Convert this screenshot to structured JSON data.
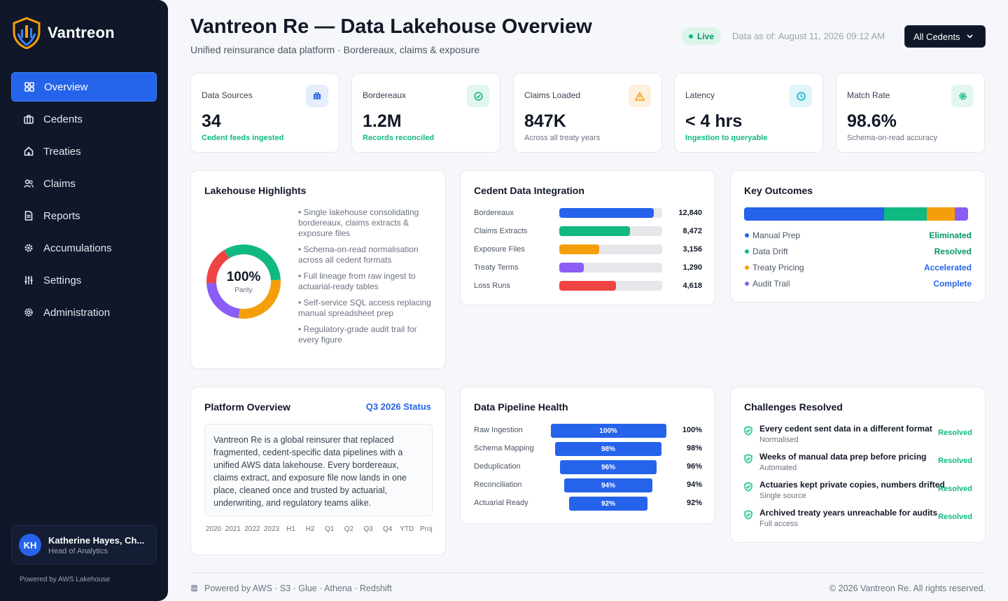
{
  "brand": {
    "name": "Vantreon"
  },
  "nav": {
    "items": [
      {
        "label": "Overview",
        "icon": "grid-icon",
        "active": true
      },
      {
        "label": "Cedents",
        "icon": "briefcase-icon"
      },
      {
        "label": "Treaties",
        "icon": "home-icon"
      },
      {
        "label": "Claims",
        "icon": "users-icon"
      },
      {
        "label": "Reports",
        "icon": "document-icon"
      },
      {
        "label": "Accumulations",
        "icon": "gear-icon"
      },
      {
        "label": "Settings",
        "icon": "sliders-icon"
      },
      {
        "label": "Administration",
        "icon": "cog-icon"
      }
    ]
  },
  "user": {
    "initials": "KH",
    "name": "Katherine Hayes, Ch...",
    "role": "Head of Analytics"
  },
  "sidebar_footer": "Powered by AWS Lakehouse",
  "header": {
    "title": "Vantreon Re — Data Lakehouse Overview",
    "subtitle": "Unified reinsurance data platform · Bordereaux, claims & exposure",
    "live_label": "Live",
    "data_as_of": "Data as of: August 11, 2026 09:12 AM",
    "cedent_filter": "All Cedents"
  },
  "kpis": [
    {
      "label": "Data Sources",
      "value": "34",
      "sub": "Cedent feeds ingested",
      "sub_color": "#10b981",
      "icon": "briefcase-icon",
      "icon_color": "#2563eb",
      "icon_bg": "#e6edfb"
    },
    {
      "label": "Bordereaux",
      "value": "1.2M",
      "sub": "Records reconciled",
      "sub_color": "#10b981",
      "icon": "check-circle-icon",
      "icon_color": "#10b981",
      "icon_bg": "#e3f6ee"
    },
    {
      "label": "Claims Loaded",
      "value": "847K",
      "sub": "Across all treaty years",
      "sub_color": "#6b7280",
      "icon": "warning-icon",
      "icon_color": "#f59e0b",
      "icon_bg": "#fdf1de"
    },
    {
      "label": "Latency",
      "value": "< 4 hrs",
      "sub": "Ingestion to queryable",
      "sub_color": "#10b981",
      "icon": "clock-icon",
      "icon_color": "#06b6d4",
      "icon_bg": "#e0f5f9"
    },
    {
      "label": "Match Rate",
      "value": "98.6%",
      "sub": "Schema-on-read accuracy",
      "sub_color": "#6b7280",
      "icon": "gear-icon",
      "icon_color": "#10b981",
      "icon_bg": "#e3f6ee"
    }
  ],
  "highlights": {
    "title": "Lakehouse Highlights",
    "donut_value": "100%",
    "donut_label": "Parity",
    "donut_segments": [
      {
        "color": "#10b981",
        "fraction": 0.33
      },
      {
        "color": "#f59e0b",
        "fraction": 0.28
      },
      {
        "color": "#8b5cf6",
        "fraction": 0.22
      },
      {
        "color": "#ef4444",
        "fraction": 0.17
      }
    ],
    "items": [
      "• Single lakehouse consolidating bordereaux, claims extracts & exposure files",
      "• Schema-on-read normalisation across all cedent formats",
      "• Full lineage from raw ingest to actuarial-ready tables",
      "• Self-service SQL access replacing manual spreadsheet prep",
      "• Regulatory-grade audit trail for every figure"
    ]
  },
  "integration": {
    "title": "Cedent Data Integration",
    "rows": [
      {
        "label": "Bordereaux",
        "value": "12,840",
        "fraction": 0.92,
        "color": "#2563eb"
      },
      {
        "label": "Claims Extracts",
        "value": "8,472",
        "fraction": 0.69,
        "color": "#10b981"
      },
      {
        "label": "Exposure Files",
        "value": "3,156",
        "fraction": 0.39,
        "color": "#f59e0b"
      },
      {
        "label": "Treaty Terms",
        "value": "1,290",
        "fraction": 0.24,
        "color": "#8b5cf6"
      },
      {
        "label": "Loss Runs",
        "value": "4,618",
        "fraction": 0.55,
        "color": "#ef4444"
      }
    ]
  },
  "outcomes": {
    "title": "Key Outcomes",
    "segments": [
      {
        "color": "#2563eb",
        "fraction": 0.625
      },
      {
        "color": "#10b981",
        "fraction": 0.19
      },
      {
        "color": "#f59e0b",
        "fraction": 0.125
      },
      {
        "color": "#8b5cf6",
        "fraction": 0.06
      }
    ],
    "rows": [
      {
        "label": "Manual Prep",
        "status": "Eliminated",
        "dot": "#2563eb",
        "status_color": "#059669"
      },
      {
        "label": "Data Drift",
        "status": "Resolved",
        "dot": "#10b981",
        "status_color": "#059669"
      },
      {
        "label": "Treaty Pricing",
        "status": "Accelerated",
        "dot": "#f59e0b",
        "status_color": "#2563eb"
      },
      {
        "label": "Audit Trail",
        "status": "Complete",
        "dot": "#8b5cf6",
        "status_color": "#2563eb"
      }
    ]
  },
  "platform": {
    "title": "Platform Overview",
    "status": "Q3 2026 Status",
    "description": "Vantreon Re is a global reinsurer that replaced fragmented, cedent-specific data pipelines with a unified AWS data lakehouse. Every bordereaux, claims extract, and exposure file now lands in one place, cleaned once and trusted by actuarial, underwriting, and regulatory teams alike.",
    "periods": [
      "2020",
      "2021",
      "2022",
      "2023",
      "H1",
      "H2",
      "Q1",
      "Q2",
      "Q3",
      "Q4",
      "YTD",
      "Proj"
    ]
  },
  "pipeline": {
    "title": "Data Pipeline Health",
    "rows": [
      {
        "label": "Raw Ingestion",
        "value": "100%",
        "fraction": 1.0
      },
      {
        "label": "Schema Mapping",
        "value": "98%",
        "fraction": 0.98
      },
      {
        "label": "Deduplication",
        "value": "96%",
        "fraction": 0.96
      },
      {
        "label": "Reconciliation",
        "value": "94%",
        "fraction": 0.94
      },
      {
        "label": "Actuarial Ready",
        "value": "92%",
        "fraction": 0.92
      }
    ]
  },
  "challenges": {
    "title": "Challenges Resolved",
    "rows": [
      {
        "title": "Every cedent sent data in a different format",
        "sub": "Normalised",
        "status": "Resolved"
      },
      {
        "title": "Weeks of manual data prep before pricing",
        "sub": "Automated",
        "status": "Resolved"
      },
      {
        "title": "Actuaries kept private copies, numbers drifted",
        "sub": "Single source",
        "status": "Resolved"
      },
      {
        "title": "Archived treaty years unreachable for audits",
        "sub": "Full access",
        "status": "Resolved"
      }
    ]
  },
  "footer": {
    "left": "Powered by AWS · S3 · Glue · Athena · Redshift",
    "right": "© 2026 Vantreon Re. All rights reserved."
  }
}
